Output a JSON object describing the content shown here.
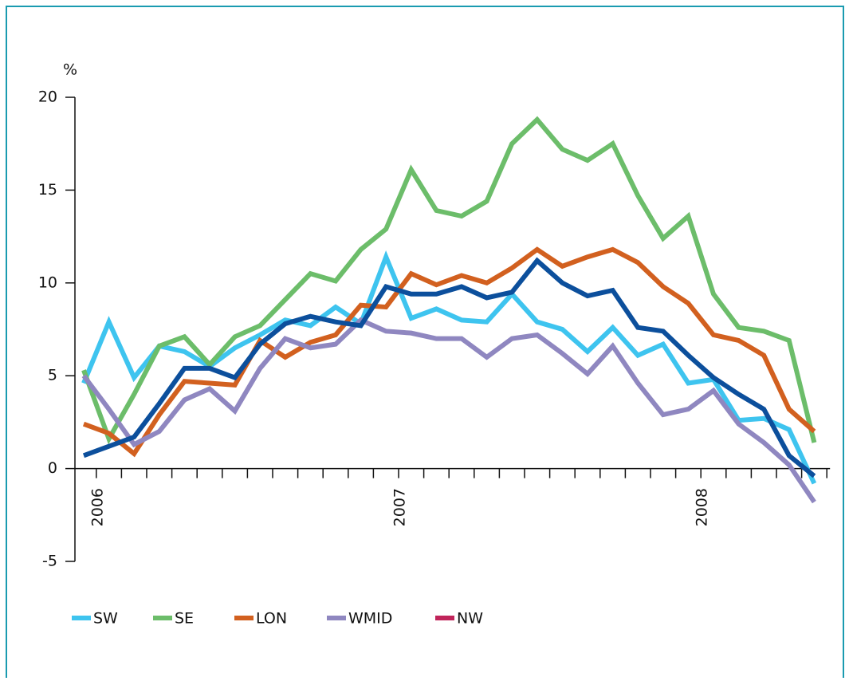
{
  "chart_data": {
    "type": "line",
    "y_label": "%",
    "categories": [
      null,
      "2006",
      null,
      null,
      null,
      null,
      null,
      null,
      null,
      null,
      null,
      null,
      null,
      "2007",
      null,
      null,
      null,
      null,
      null,
      null,
      null,
      null,
      null,
      null,
      null,
      "2008",
      null,
      null,
      null,
      null
    ],
    "ylim": [
      -5,
      20
    ],
    "yticks": [
      -5,
      0,
      5,
      10,
      15,
      20
    ],
    "series": [
      {
        "name": "SW",
        "color": "#3ec4ef",
        "values": [
          4.6,
          7.9,
          4.9,
          6.6,
          6.3,
          5.5,
          6.5,
          7.2,
          8.0,
          7.7,
          8.7,
          7.8,
          11.4,
          8.1,
          8.6,
          8.0,
          7.9,
          9.4,
          7.9,
          7.5,
          6.3,
          7.6,
          6.1,
          6.7,
          4.6,
          4.8,
          2.6,
          2.7,
          2.1,
          -0.8
        ]
      },
      {
        "name": "SE",
        "color": "#6cbd6a",
        "values": [
          5.3,
          1.6,
          4.0,
          6.6,
          7.1,
          5.6,
          7.1,
          7.7,
          9.1,
          10.5,
          10.1,
          11.8,
          12.9,
          16.1,
          13.9,
          13.6,
          14.4,
          17.5,
          18.8,
          17.2,
          16.6,
          17.5,
          14.7,
          12.4,
          13.6,
          9.4,
          7.6,
          7.4,
          6.9,
          1.4
        ]
      },
      {
        "name": "LON",
        "color": "#d2601f",
        "values": [
          2.4,
          1.9,
          0.8,
          2.9,
          4.7,
          4.6,
          4.5,
          6.9,
          6.0,
          6.8,
          7.2,
          8.8,
          8.7,
          10.5,
          9.9,
          10.4,
          10.0,
          10.8,
          11.8,
          10.9,
          11.4,
          11.8,
          11.1,
          9.8,
          8.9,
          7.2,
          6.9,
          6.1,
          3.2,
          2.0
        ]
      },
      {
        "name": "WMID",
        "color": "#8f87c0",
        "values": [
          5.0,
          3.2,
          1.3,
          2.0,
          3.7,
          4.3,
          3.1,
          5.4,
          7.0,
          6.5,
          6.7,
          8.0,
          7.4,
          7.3,
          7.0,
          7.0,
          6.0,
          7.0,
          7.2,
          6.2,
          5.1,
          6.6,
          4.6,
          2.9,
          3.2,
          4.2,
          2.4,
          1.4,
          0.2,
          -1.8
        ]
      },
      {
        "name": "NW",
        "color": "#0c4f9c",
        "legend_color": "#c0245a",
        "values": [
          0.7,
          1.2,
          1.7,
          3.5,
          5.4,
          5.4,
          4.9,
          6.7,
          7.8,
          8.2,
          7.9,
          7.7,
          9.8,
          9.4,
          9.4,
          9.8,
          9.2,
          9.5,
          11.2,
          10.0,
          9.3,
          9.6,
          7.6,
          7.4,
          6.1,
          4.9,
          4.0,
          3.2,
          0.7,
          -0.4
        ]
      }
    ]
  }
}
